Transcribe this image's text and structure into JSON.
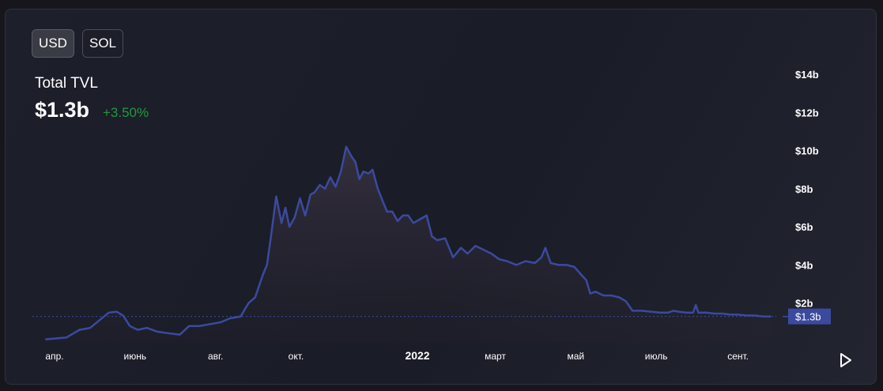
{
  "currency_buttons": [
    {
      "label": "USD",
      "active": true
    },
    {
      "label": "SOL",
      "active": false
    }
  ],
  "header": {
    "label": "Total TVL",
    "value": "$1.3b",
    "change": "+3.50%"
  },
  "colors": {
    "line": "#3b4a9e",
    "positive": "#1f9a3c",
    "current_tag": "#3b4a9e"
  },
  "play_icon": "play-icon",
  "chart_data": {
    "type": "area",
    "title": "",
    "xlabel": "",
    "ylabel": "",
    "ylim": [
      0,
      14.5
    ],
    "y_ticks": [
      {
        "v": 2,
        "label": "$2b"
      },
      {
        "v": 4,
        "label": "$4b"
      },
      {
        "v": 6,
        "label": "$6b"
      },
      {
        "v": 8,
        "label": "$8b"
      },
      {
        "v": 10,
        "label": "$10b"
      },
      {
        "v": 12,
        "label": "$12b"
      },
      {
        "v": 14,
        "label": "$14b"
      }
    ],
    "x_range": [
      "2021-03-20",
      "2022-09-30"
    ],
    "x_ticks": [
      {
        "date": "2021-04-01",
        "label": "апр."
      },
      {
        "date": "2021-06-01",
        "label": "июнь"
      },
      {
        "date": "2021-08-01",
        "label": "авг."
      },
      {
        "date": "2021-10-01",
        "label": "окт."
      },
      {
        "date": "2022-01-01",
        "label": "2022",
        "bold": true
      },
      {
        "date": "2022-03-01",
        "label": "март"
      },
      {
        "date": "2022-05-01",
        "label": "май"
      },
      {
        "date": "2022-07-01",
        "label": "июль"
      },
      {
        "date": "2022-09-01",
        "label": "сент."
      }
    ],
    "current": {
      "value": 1.3,
      "label": "$1.3b"
    },
    "series": [
      {
        "values": [
          [
            "2021-03-25",
            0.1
          ],
          [
            "2021-04-10",
            0.2
          ],
          [
            "2021-04-20",
            0.6
          ],
          [
            "2021-04-28",
            0.7
          ],
          [
            "2021-05-05",
            1.1
          ],
          [
            "2021-05-12",
            1.5
          ],
          [
            "2021-05-18",
            1.55
          ],
          [
            "2021-05-23",
            1.35
          ],
          [
            "2021-05-28",
            0.8
          ],
          [
            "2021-06-03",
            0.6
          ],
          [
            "2021-06-10",
            0.7
          ],
          [
            "2021-06-18",
            0.5
          ],
          [
            "2021-06-28",
            0.4
          ],
          [
            "2021-07-05",
            0.35
          ],
          [
            "2021-07-12",
            0.8
          ],
          [
            "2021-07-20",
            0.8
          ],
          [
            "2021-07-28",
            0.9
          ],
          [
            "2021-08-05",
            1.0
          ],
          [
            "2021-08-12",
            1.2
          ],
          [
            "2021-08-20",
            1.3
          ],
          [
            "2021-08-26",
            2.0
          ],
          [
            "2021-08-31",
            2.3
          ],
          [
            "2021-09-06",
            3.5
          ],
          [
            "2021-09-09",
            4.0
          ],
          [
            "2021-09-12",
            5.5
          ],
          [
            "2021-09-16",
            7.6
          ],
          [
            "2021-09-20",
            6.2
          ],
          [
            "2021-09-23",
            7.0
          ],
          [
            "2021-09-26",
            6.0
          ],
          [
            "2021-09-30",
            6.5
          ],
          [
            "2021-10-04",
            7.5
          ],
          [
            "2021-10-08",
            6.6
          ],
          [
            "2021-10-12",
            7.7
          ],
          [
            "2021-10-15",
            7.8
          ],
          [
            "2021-10-19",
            8.2
          ],
          [
            "2021-10-23",
            8.0
          ],
          [
            "2021-10-27",
            8.6
          ],
          [
            "2021-10-31",
            8.1
          ],
          [
            "2021-11-04",
            8.9
          ],
          [
            "2021-11-08",
            10.2
          ],
          [
            "2021-11-12",
            9.7
          ],
          [
            "2021-11-15",
            9.4
          ],
          [
            "2021-11-18",
            8.5
          ],
          [
            "2021-11-21",
            8.9
          ],
          [
            "2021-11-25",
            8.8
          ],
          [
            "2021-11-28",
            9.0
          ],
          [
            "2021-12-02",
            8.0
          ],
          [
            "2021-12-06",
            7.3
          ],
          [
            "2021-12-09",
            6.8
          ],
          [
            "2021-12-13",
            6.8
          ],
          [
            "2021-12-17",
            6.3
          ],
          [
            "2021-12-21",
            6.6
          ],
          [
            "2021-12-25",
            6.6
          ],
          [
            "2021-12-29",
            6.2
          ],
          [
            "2022-01-03",
            6.4
          ],
          [
            "2022-01-08",
            6.6
          ],
          [
            "2022-01-12",
            5.5
          ],
          [
            "2022-01-16",
            5.3
          ],
          [
            "2022-01-22",
            5.4
          ],
          [
            "2022-01-28",
            4.4
          ],
          [
            "2022-02-03",
            4.9
          ],
          [
            "2022-02-08",
            4.6
          ],
          [
            "2022-02-14",
            5.0
          ],
          [
            "2022-02-20",
            4.8
          ],
          [
            "2022-02-26",
            4.6
          ],
          [
            "2022-03-04",
            4.3
          ],
          [
            "2022-03-10",
            4.2
          ],
          [
            "2022-03-17",
            4.0
          ],
          [
            "2022-03-24",
            4.2
          ],
          [
            "2022-03-31",
            4.1
          ],
          [
            "2022-04-05",
            4.4
          ],
          [
            "2022-04-08",
            4.9
          ],
          [
            "2022-04-12",
            4.1
          ],
          [
            "2022-04-18",
            4.0
          ],
          [
            "2022-04-24",
            4.0
          ],
          [
            "2022-04-30",
            3.9
          ],
          [
            "2022-05-05",
            3.5
          ],
          [
            "2022-05-09",
            3.2
          ],
          [
            "2022-05-12",
            2.5
          ],
          [
            "2022-05-16",
            2.6
          ],
          [
            "2022-05-22",
            2.4
          ],
          [
            "2022-05-28",
            2.4
          ],
          [
            "2022-06-03",
            2.3
          ],
          [
            "2022-06-08",
            2.1
          ],
          [
            "2022-06-13",
            1.6
          ],
          [
            "2022-06-20",
            1.6
          ],
          [
            "2022-06-27",
            1.55
          ],
          [
            "2022-07-04",
            1.5
          ],
          [
            "2022-07-10",
            1.5
          ],
          [
            "2022-07-14",
            1.6
          ],
          [
            "2022-07-18",
            1.55
          ],
          [
            "2022-07-24",
            1.5
          ],
          [
            "2022-07-29",
            1.5
          ],
          [
            "2022-07-31",
            1.9
          ],
          [
            "2022-08-02",
            1.5
          ],
          [
            "2022-08-08",
            1.5
          ],
          [
            "2022-08-14",
            1.45
          ],
          [
            "2022-08-20",
            1.45
          ],
          [
            "2022-08-26",
            1.4
          ],
          [
            "2022-09-01",
            1.4
          ],
          [
            "2022-09-07",
            1.35
          ],
          [
            "2022-09-13",
            1.35
          ],
          [
            "2022-09-20",
            1.3
          ],
          [
            "2022-09-26",
            1.3
          ]
        ]
      }
    ]
  }
}
